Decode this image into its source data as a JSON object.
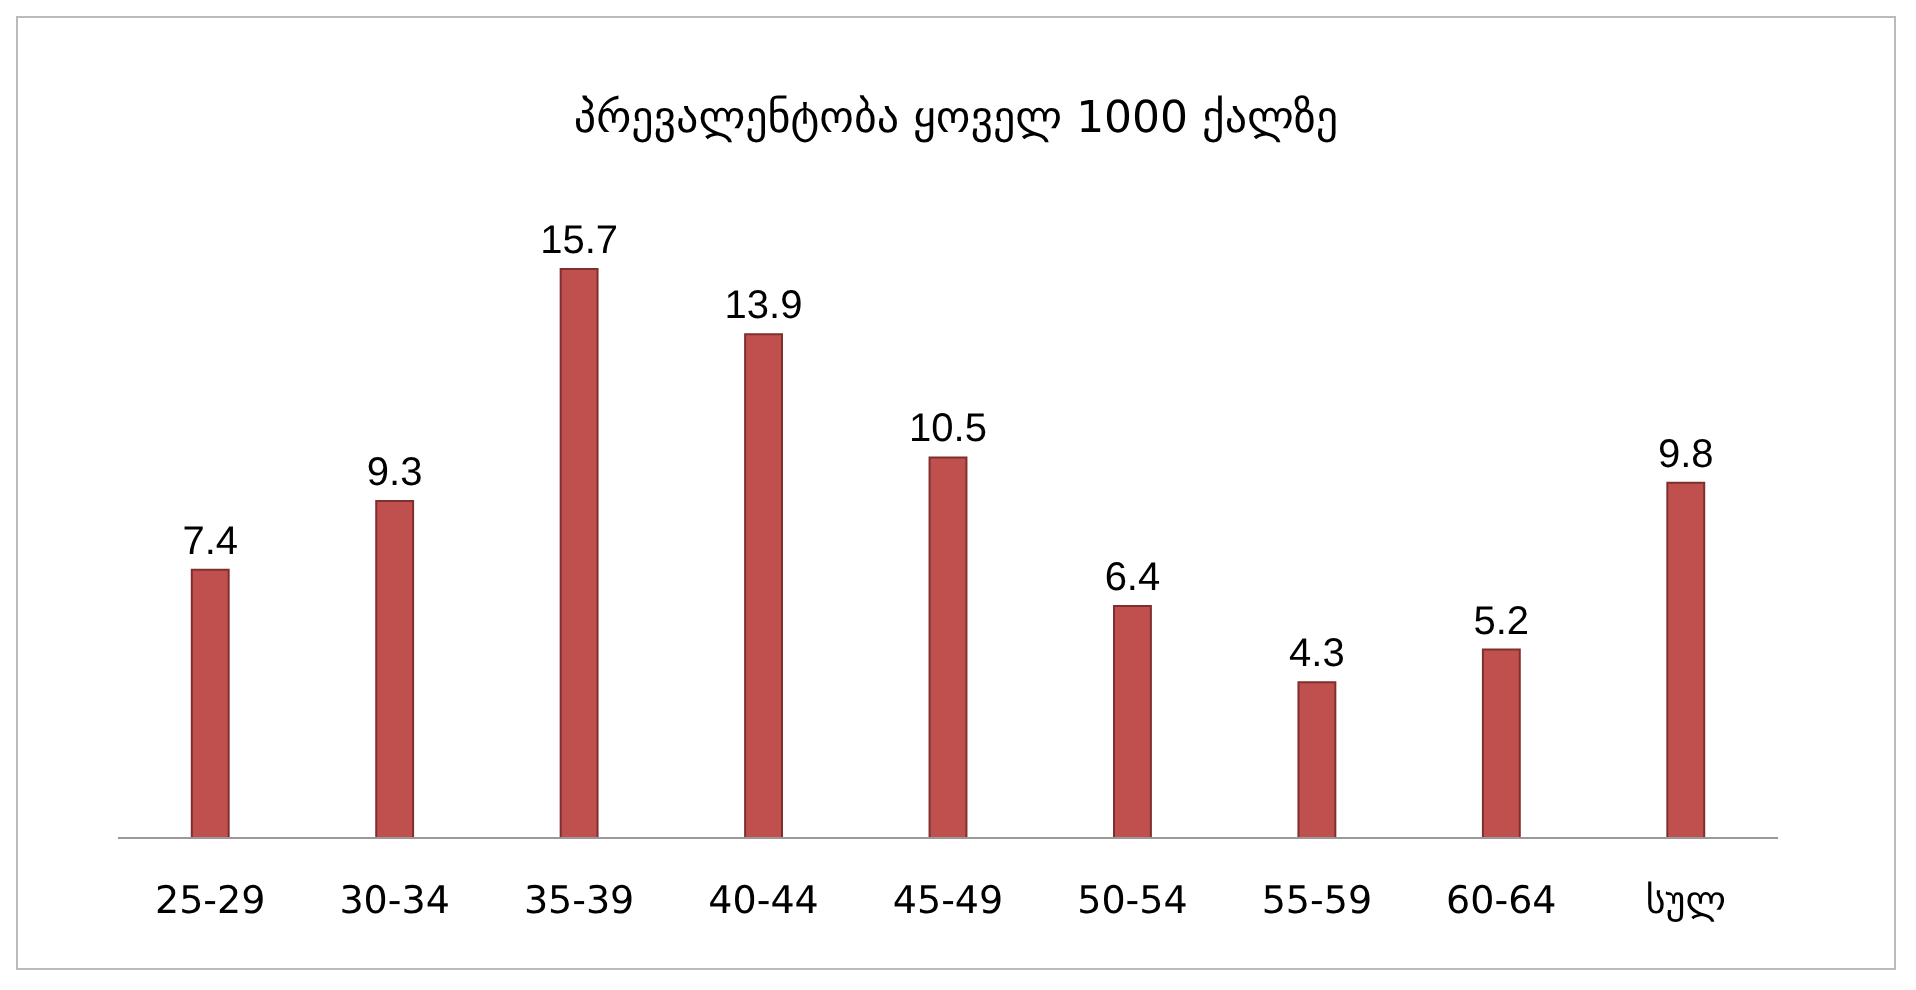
{
  "chart_data": {
    "type": "bar",
    "title": "პრევალენტობა ყოველ 1000 ქალზე",
    "categories": [
      "25-29",
      "30-34",
      "35-39",
      "40-44",
      "45-49",
      "50-54",
      "55-59",
      "60-64",
      "სულ"
    ],
    "values": [
      7.4,
      9.3,
      15.7,
      13.9,
      10.5,
      6.4,
      4.3,
      5.2,
      9.8
    ],
    "color": "#c0504d",
    "data_labels": true,
    "grid": false
  }
}
